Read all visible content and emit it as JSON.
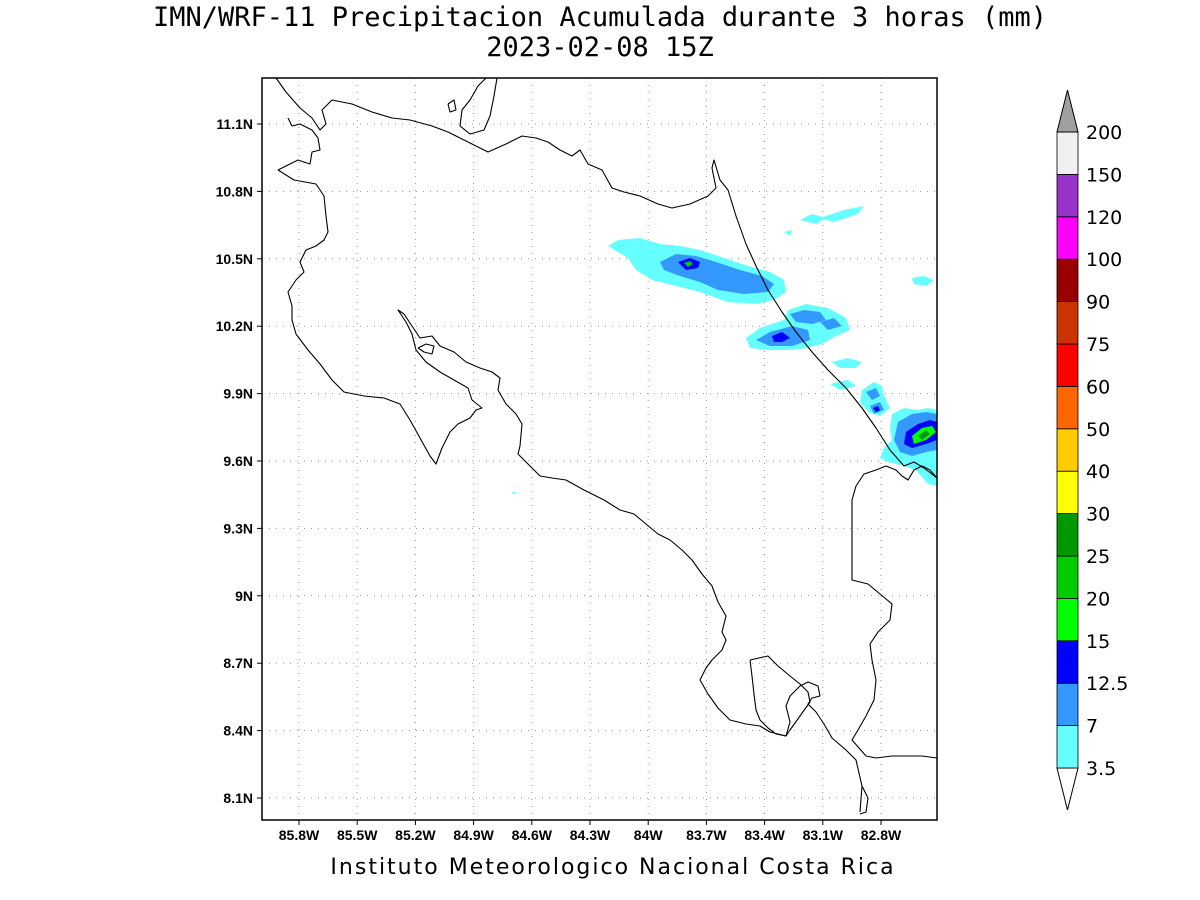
{
  "title": {
    "line1": "IMN/WRF-11 Precipitacion Acumulada durante 3 horas (mm)",
    "line2": "2023-02-08 15Z"
  },
  "credit": "Instituto Meteorologico Nacional Costa Rica",
  "map": {
    "lat_labels": [
      "11.1N",
      "10.8N",
      "10.5N",
      "10.2N",
      "9.9N",
      "9.6N",
      "9.3N",
      "9N",
      "8.7N",
      "8.4N",
      "8.1N"
    ],
    "lon_labels": [
      "85.8W",
      "85.5W",
      "85.2W",
      "84.9W",
      "84.6W",
      "84.3W",
      "84W",
      "83.7W",
      "83.4W",
      "83.1W",
      "82.8W"
    ],
    "grid": "dotted"
  },
  "colorbar": {
    "unit": "mm",
    "levels": [
      "3.5",
      "7",
      "12.5",
      "15",
      "20",
      "25",
      "30",
      "40",
      "50",
      "60",
      "75",
      "90",
      "100",
      "120",
      "150",
      "200"
    ],
    "colors": [
      "#66ffff",
      "#3399ff",
      "#0000ff",
      "#00ff00",
      "#00cc00",
      "#009900",
      "#ffff00",
      "#ffcc00",
      "#ff6600",
      "#ff0000",
      "#cc3300",
      "#990000",
      "#ff00ff",
      "#9933cc",
      "#f0f0f0",
      "#a0a0a0"
    ]
  }
}
